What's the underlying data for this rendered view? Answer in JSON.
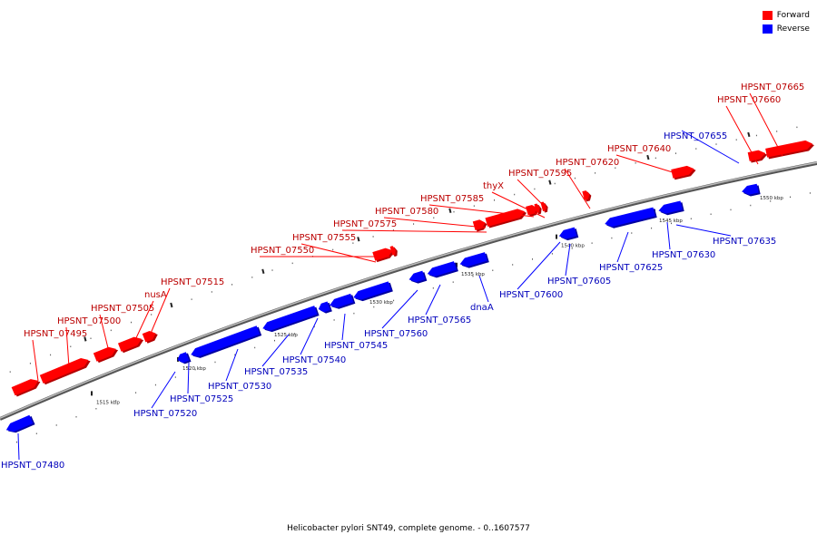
{
  "legend": {
    "items": [
      {
        "label": "Forward",
        "color": "#ff0000"
      },
      {
        "label": "Reverse",
        "color": "#0000ff"
      }
    ]
  },
  "caption": "Helicobacter pylori SNT49, complete genome. - 0..1607577",
  "colors": {
    "forward": "#ff0000",
    "forward_shade": "#b30000",
    "reverse": "#0000ff",
    "reverse_shade": "#0000a0",
    "forward_label": "#bb0000",
    "reverse_label": "#0000bb",
    "backbone": "#777777"
  },
  "ticks": [
    {
      "label": "1515 kbp",
      "kbp": 1515
    },
    {
      "label": "1520 kbp",
      "kbp": 1520
    },
    {
      "label": "1525 kbp",
      "kbp": 1525
    },
    {
      "label": "1530 kbp",
      "kbp": 1530
    },
    {
      "label": "1535 kbp",
      "kbp": 1535
    },
    {
      "label": "1540 kbp",
      "kbp": 1540
    },
    {
      "label": "1545 kbp",
      "kbp": 1545
    },
    {
      "label": "1550 kbp",
      "kbp": 1550
    }
  ],
  "genes": [
    {
      "name": "HPSNT_07480",
      "strand": "reverse"
    },
    {
      "name": "HPSNT_07495",
      "strand": "forward"
    },
    {
      "name": "HPSNT_07500",
      "strand": "forward"
    },
    {
      "name": "HPSNT_07505",
      "strand": "forward"
    },
    {
      "name": "nusA",
      "strand": "forward"
    },
    {
      "name": "HPSNT_07515",
      "strand": "forward"
    },
    {
      "name": "HPSNT_07520",
      "strand": "reverse"
    },
    {
      "name": "HPSNT_07525",
      "strand": "reverse"
    },
    {
      "name": "HPSNT_07530",
      "strand": "reverse"
    },
    {
      "name": "HPSNT_07535",
      "strand": "reverse"
    },
    {
      "name": "HPSNT_07540",
      "strand": "reverse"
    },
    {
      "name": "HPSNT_07545",
      "strand": "reverse"
    },
    {
      "name": "HPSNT_07550",
      "strand": "forward"
    },
    {
      "name": "HPSNT_07555",
      "strand": "forward"
    },
    {
      "name": "HPSNT_07560",
      "strand": "reverse"
    },
    {
      "name": "HPSNT_07565",
      "strand": "reverse"
    },
    {
      "name": "dnaA",
      "strand": "reverse"
    },
    {
      "name": "HPSNT_07575",
      "strand": "forward"
    },
    {
      "name": "HPSNT_07580",
      "strand": "forward"
    },
    {
      "name": "HPSNT_07585",
      "strand": "forward"
    },
    {
      "name": "thyX",
      "strand": "forward"
    },
    {
      "name": "HPSNT_07595",
      "strand": "forward"
    },
    {
      "name": "HPSNT_07600",
      "strand": "reverse"
    },
    {
      "name": "HPSNT_07605",
      "strand": "reverse"
    },
    {
      "name": "HPSNT_07620",
      "strand": "forward"
    },
    {
      "name": "HPSNT_07625",
      "strand": "reverse"
    },
    {
      "name": "HPSNT_07630",
      "strand": "reverse"
    },
    {
      "name": "HPSNT_07635",
      "strand": "reverse"
    },
    {
      "name": "HPSNT_07640",
      "strand": "forward"
    },
    {
      "name": "HPSNT_07655",
      "strand": "reverse"
    },
    {
      "name": "HPSNT_07660",
      "strand": "forward"
    },
    {
      "name": "HPSNT_07665",
      "strand": "forward"
    }
  ]
}
